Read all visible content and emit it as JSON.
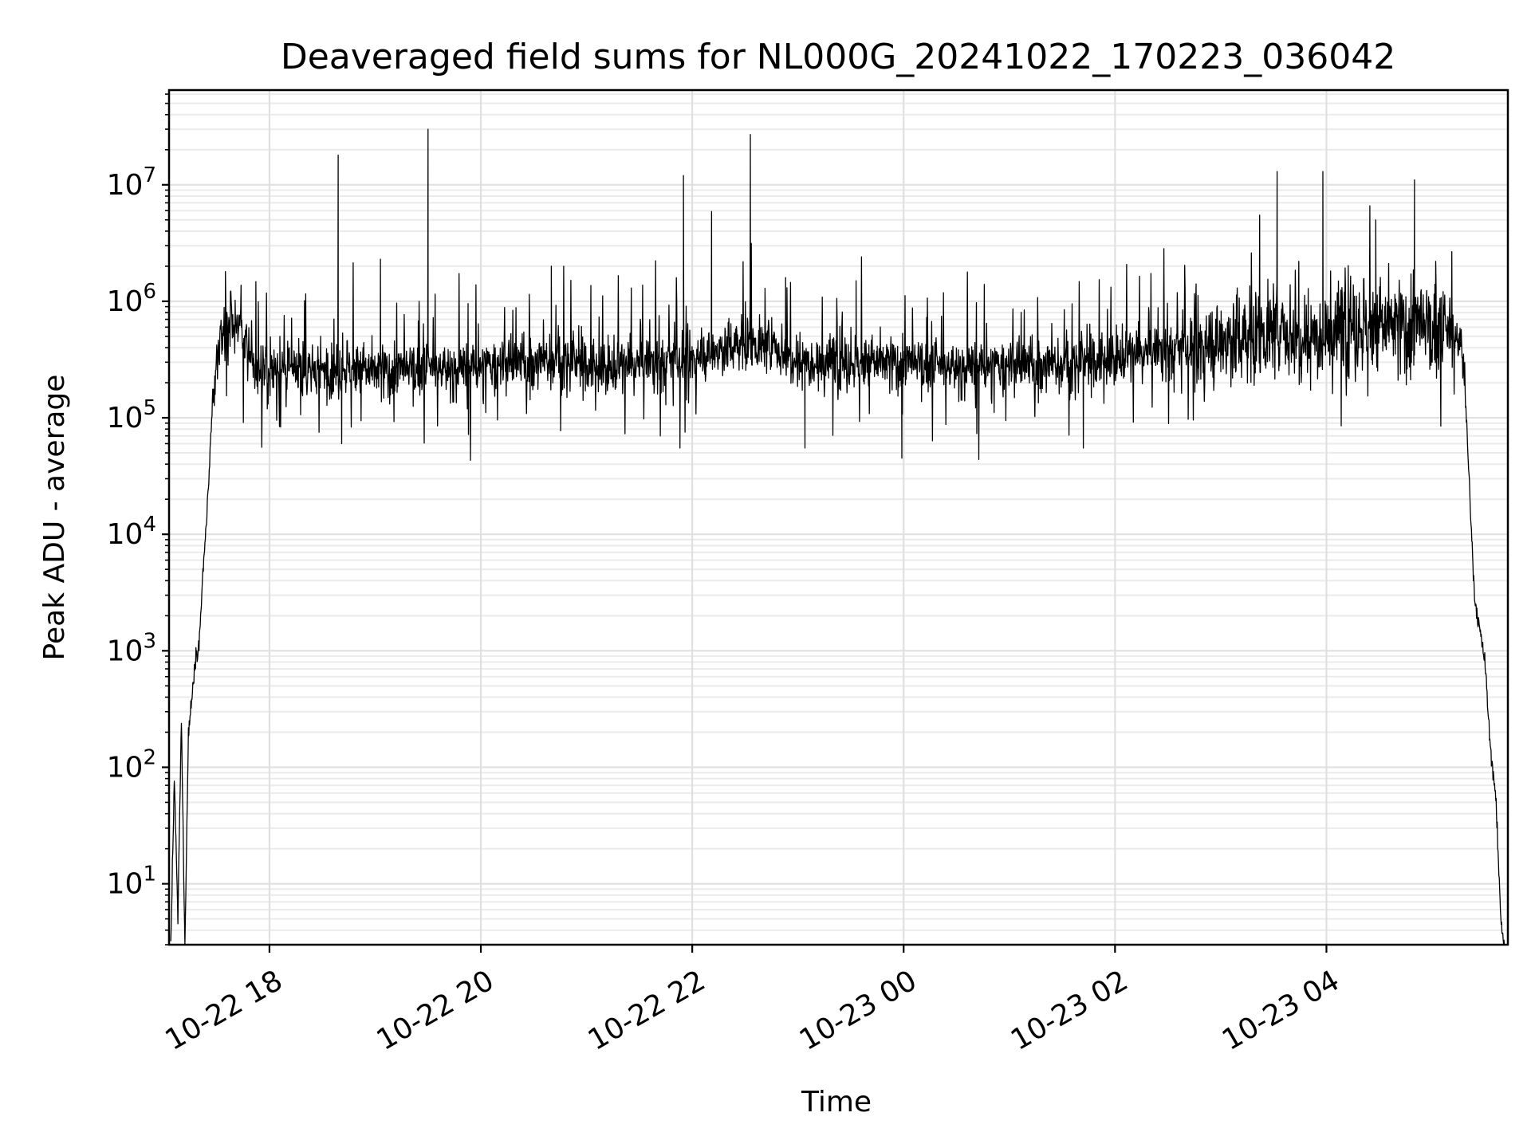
{
  "chart_data": {
    "type": "line",
    "title": "Deaveraged field sums for NL000G_20241022_170223_036042",
    "xlabel": "Time",
    "ylabel": "Peak ADU - average",
    "x_scale": "time",
    "y_scale": "log",
    "xlim": [
      "2024-10-22 17:03",
      "2024-10-23 05:43"
    ],
    "ylim": [
      3,
      65000000
    ],
    "x_ticks": [
      {
        "value": "2024-10-22 18:00",
        "label": "10-22 18"
      },
      {
        "value": "2024-10-22 20:00",
        "label": "10-22 20"
      },
      {
        "value": "2024-10-22 22:00",
        "label": "10-22 22"
      },
      {
        "value": "2024-10-23 00:00",
        "label": "10-23 00"
      },
      {
        "value": "2024-10-23 02:00",
        "label": "10-23 02"
      },
      {
        "value": "2024-10-23 04:00",
        "label": "10-23 04"
      }
    ],
    "y_ticks": [
      {
        "value": 10,
        "base": "10",
        "exp": "1"
      },
      {
        "value": 100,
        "base": "10",
        "exp": "2"
      },
      {
        "value": 1000,
        "base": "10",
        "exp": "3"
      },
      {
        "value": 10000,
        "base": "10",
        "exp": "4"
      },
      {
        "value": 100000,
        "base": "10",
        "exp": "5"
      },
      {
        "value": 1000000,
        "base": "10",
        "exp": "6"
      },
      {
        "value": 10000000,
        "base": "10",
        "exp": "7"
      }
    ],
    "grid": true,
    "legend": "none",
    "line_color": "#000000",
    "series": [
      {
        "x": [
          "2024-10-22 17:04",
          "2024-10-22 17:06",
          "2024-10-22 17:08",
          "2024-10-22 17:10",
          "2024-10-22 17:12",
          "2024-10-22 17:14",
          "2024-10-22 17:16",
          "2024-10-22 17:18",
          "2024-10-22 17:20",
          "2024-10-22 17:22",
          "2024-10-22 17:25",
          "2024-10-22 17:28",
          "2024-10-22 17:32",
          "2024-10-22 17:36",
          "2024-10-22 17:40",
          "2024-10-22 17:45",
          "2024-10-22 17:50",
          "2024-10-22 17:55",
          "2024-10-22 18:00",
          "2024-10-22 18:15",
          "2024-10-22 18:30",
          "2024-10-22 18:45",
          "2024-10-22 19:00",
          "2024-10-22 19:15",
          "2024-10-22 19:30",
          "2024-10-22 19:45",
          "2024-10-22 20:00",
          "2024-10-22 20:15",
          "2024-10-22 20:30",
          "2024-10-22 20:45",
          "2024-10-22 21:00",
          "2024-10-22 21:15",
          "2024-10-22 21:30",
          "2024-10-22 21:45",
          "2024-10-22 22:00",
          "2024-10-22 22:15",
          "2024-10-22 22:30",
          "2024-10-22 22:45",
          "2024-10-22 23:00",
          "2024-10-22 23:15",
          "2024-10-22 23:30",
          "2024-10-22 23:45",
          "2024-10-23 00:00",
          "2024-10-23 00:15",
          "2024-10-23 00:30",
          "2024-10-23 00:45",
          "2024-10-23 01:00",
          "2024-10-23 01:15",
          "2024-10-23 01:30",
          "2024-10-23 01:45",
          "2024-10-23 02:00",
          "2024-10-23 02:15",
          "2024-10-23 02:30",
          "2024-10-23 02:45",
          "2024-10-23 03:00",
          "2024-10-23 03:15",
          "2024-10-23 03:30",
          "2024-10-23 03:45",
          "2024-10-23 04:00",
          "2024-10-23 04:15",
          "2024-10-23 04:30",
          "2024-10-23 04:45",
          "2024-10-23 05:00",
          "2024-10-23 05:10",
          "2024-10-23 05:15",
          "2024-10-23 05:18",
          "2024-10-23 05:21",
          "2024-10-23 05:24",
          "2024-10-23 05:27",
          "2024-10-23 05:30",
          "2024-10-23 05:33",
          "2024-10-23 05:36",
          "2024-10-23 05:39",
          "2024-10-23 05:41"
        ],
        "y": [
          3,
          80,
          5,
          250,
          3,
          200,
          400,
          900,
          1100,
          4000,
          20000,
          150000,
          500000,
          650000,
          700000,
          500000,
          300000,
          250000,
          260000,
          250000,
          260000,
          270000,
          250000,
          250000,
          270000,
          260000,
          270000,
          290000,
          300000,
          320000,
          280000,
          270000,
          290000,
          300000,
          320000,
          380000,
          450000,
          400000,
          330000,
          310000,
          300000,
          300000,
          290000,
          280000,
          270000,
          270000,
          280000,
          280000,
          290000,
          300000,
          330000,
          360000,
          380000,
          400000,
          450000,
          500000,
          550000,
          520000,
          560000,
          600000,
          620000,
          600000,
          560000,
          520000,
          480000,
          300000,
          30000,
          3000,
          1500,
          800,
          150,
          60,
          5,
          3
        ]
      }
    ],
    "spikes": [
      {
        "x": "2024-10-22 17:35",
        "y": 1800000
      },
      {
        "x": "2024-10-22 18:39",
        "y": 18000000
      },
      {
        "x": "2024-10-22 19:03",
        "y": 2300000
      },
      {
        "x": "2024-10-22 19:30",
        "y": 30000000
      },
      {
        "x": "2024-10-22 20:40",
        "y": 2000000
      },
      {
        "x": "2024-10-22 20:47",
        "y": 2000000
      },
      {
        "x": "2024-10-22 21:55",
        "y": 12000000
      },
      {
        "x": "2024-10-22 22:11",
        "y": 5900000
      },
      {
        "x": "2024-10-22 22:33",
        "y": 27000000
      },
      {
        "x": "2024-10-22 22:53",
        "y": 1600000
      },
      {
        "x": "2024-10-22 23:33",
        "y": 1500000
      },
      {
        "x": "2024-10-23 03:32",
        "y": 13000000
      },
      {
        "x": "2024-10-23 03:58",
        "y": 13000000
      },
      {
        "x": "2024-10-23 04:28",
        "y": 5000000
      },
      {
        "x": "2024-10-23 04:50",
        "y": 11000000
      }
    ],
    "dips": [
      {
        "x": "2024-10-22 18:41",
        "y": 60000
      },
      {
        "x": "2024-10-22 21:53",
        "y": 55000
      },
      {
        "x": "2024-10-22 23:04",
        "y": 55000
      },
      {
        "x": "2024-10-22 23:59",
        "y": 45000
      },
      {
        "x": "2024-10-23 01:42",
        "y": 55000
      }
    ]
  }
}
